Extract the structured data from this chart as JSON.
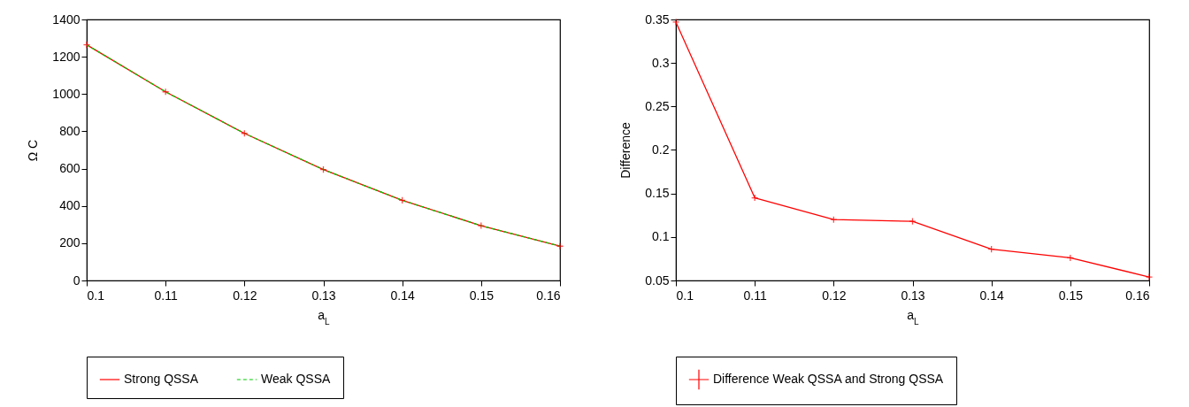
{
  "chart_data": [
    {
      "type": "line",
      "xlabel": "a$_{L}$",
      "ylabel": "Ω C",
      "x": [
        0.1,
        0.11,
        0.12,
        0.13,
        0.14,
        0.15,
        0.16
      ],
      "xlim": [
        0.1,
        0.16
      ],
      "xticks": [
        0.1,
        0.11,
        0.12,
        0.13,
        0.14,
        0.15,
        0.16
      ],
      "ylim": [
        0,
        1400
      ],
      "yticks": [
        0,
        200,
        400,
        600,
        800,
        1000,
        1200,
        1400
      ],
      "grid": false,
      "legend": "bottom",
      "series": [
        {
          "name": "Strong QSSA",
          "color": "#ff0000",
          "marker": "cross",
          "line_style": "solid",
          "values": [
            1264,
            1012,
            789,
            595,
            430,
            294,
            184
          ]
        },
        {
          "name": "Weak QSSA",
          "color": "#00cc00",
          "marker": "none",
          "line_style": "dashed",
          "values": [
            1264,
            1012,
            789,
            595,
            430,
            294,
            184
          ]
        }
      ]
    },
    {
      "type": "line",
      "xlabel": "a$_{L}$",
      "ylabel": "Difference",
      "x": [
        0.1,
        0.11,
        0.12,
        0.13,
        0.14,
        0.15,
        0.16
      ],
      "xlim": [
        0.1,
        0.16
      ],
      "xticks": [
        0.1,
        0.11,
        0.12,
        0.13,
        0.14,
        0.15,
        0.16
      ],
      "ylim": [
        0.05,
        0.35
      ],
      "yticks": [
        0.05,
        0.1,
        0.15,
        0.2,
        0.25,
        0.3,
        0.35
      ],
      "grid": false,
      "legend": "bottom",
      "series": [
        {
          "name": "Difference Weak QSSA and Strong QSSA",
          "color": "#ff0000",
          "marker": "cross",
          "line_style": "solid",
          "values": [
            0.347,
            0.145,
            0.12,
            0.118,
            0.086,
            0.076,
            0.054
          ]
        }
      ]
    }
  ]
}
